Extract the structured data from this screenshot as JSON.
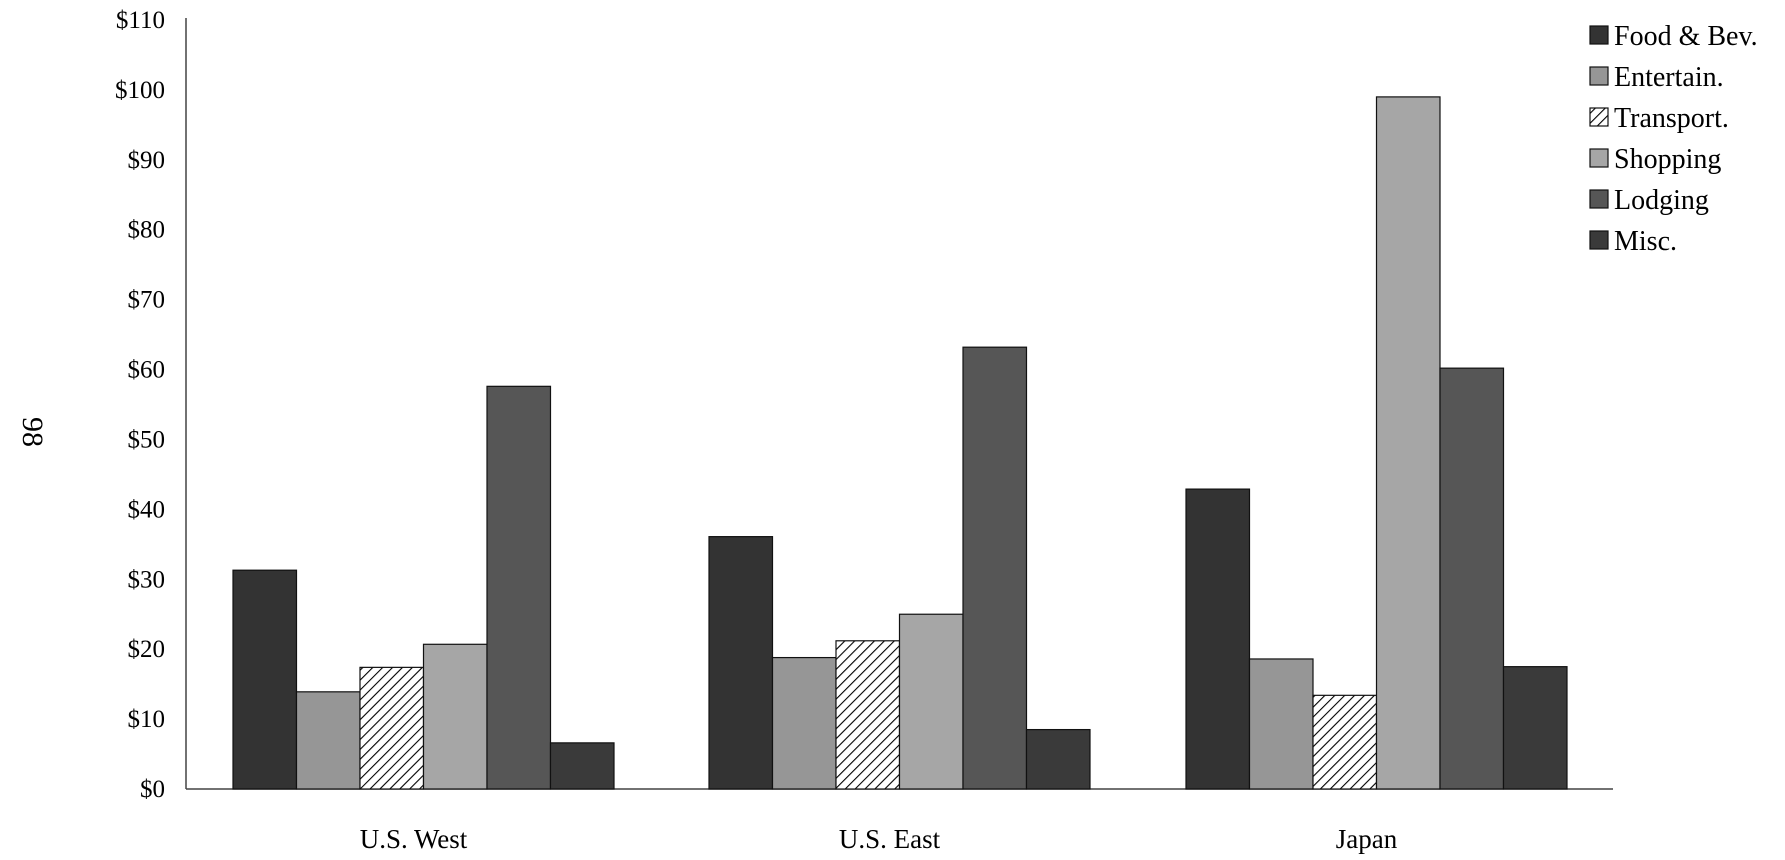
{
  "page_number": "98",
  "chart_data": {
    "type": "bar",
    "categories": [
      "U.S. West",
      "U.S. East",
      "Japan"
    ],
    "series": [
      {
        "name": "Food & Bev.",
        "values": [
          31.3,
          36.1,
          42.9
        ],
        "color": "#333333",
        "pattern": "solid"
      },
      {
        "name": "Entertain.",
        "values": [
          13.9,
          18.8,
          18.6
        ],
        "color": "#969696",
        "pattern": "solid"
      },
      {
        "name": "Transport.",
        "values": [
          17.4,
          21.2,
          13.4
        ],
        "color": "#ffffff",
        "pattern": "hatch"
      },
      {
        "name": "Shopping",
        "values": [
          20.7,
          25.0,
          99.0
        ],
        "color": "#a6a6a6",
        "pattern": "solid"
      },
      {
        "name": "Lodging",
        "values": [
          57.6,
          63.2,
          60.2
        ],
        "color": "#565656",
        "pattern": "solid"
      },
      {
        "name": "Misc.",
        "values": [
          6.6,
          8.5,
          17.5
        ],
        "color": "#3a3a3a",
        "pattern": "solid"
      }
    ],
    "yticks": [
      "$0",
      "$10",
      "$20",
      "$30",
      "$40",
      "$50",
      "$60",
      "$70",
      "$80",
      "$90",
      "$100",
      "$110"
    ],
    "ylim": [
      0,
      110
    ],
    "grid": false,
    "legend_position": "top-right",
    "xlabel": "",
    "ylabel": ""
  }
}
